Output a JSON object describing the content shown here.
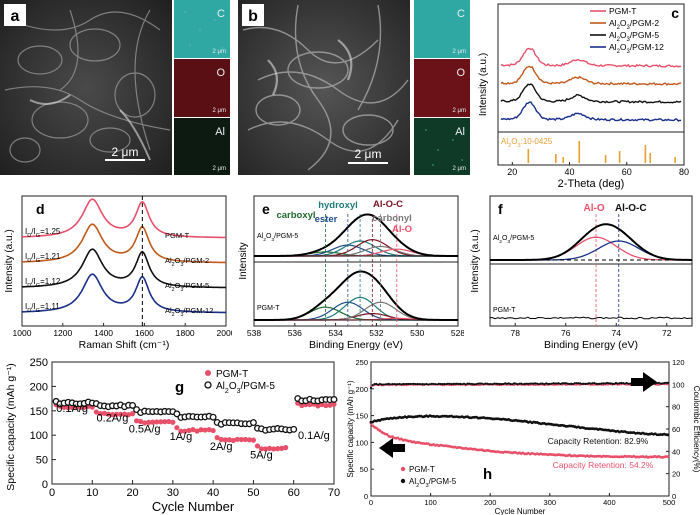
{
  "panel_a": {
    "letter": "a",
    "scale_bar": "2 μm",
    "maps": [
      {
        "element": "C",
        "scale": "2 μm",
        "color": "#2fa7a3"
      },
      {
        "element": "O",
        "scale": "2 μm",
        "color": "#5a0f14"
      },
      {
        "element": "Al",
        "scale": "2 μm",
        "color": "#0d1a12"
      }
    ]
  },
  "panel_b": {
    "letter": "b",
    "scale_bar": "2 μm",
    "maps": [
      {
        "element": "C",
        "scale": "2 μm",
        "color": "#2fa7a3"
      },
      {
        "element": "O",
        "scale": "2 μm",
        "color": "#6a1218"
      },
      {
        "element": "Al",
        "scale": "2 μm",
        "color": "#0f3a28"
      }
    ]
  },
  "chart_data": [
    {
      "id": "c",
      "type": "line",
      "title": "",
      "xlabel": "2-Theta (deg)",
      "ylabel": "Intensity (a.u.)",
      "xlim": [
        15,
        80
      ],
      "xticks": [
        20,
        40,
        60,
        80
      ],
      "legend": "top-right",
      "series": [
        {
          "name": "PGM-T",
          "color": "#e8506a",
          "offset": 3
        },
        {
          "name": "Al2O3/PGM-2",
          "color": "#c05a1a",
          "offset": 2
        },
        {
          "name": "Al2O3/PGM-5",
          "color": "#111111",
          "offset": 1
        },
        {
          "name": "Al2O3/PGM-12",
          "color": "#1a2f8a",
          "offset": 0
        }
      ],
      "peaks_2theta": [
        26,
        43
      ],
      "reference": {
        "label": "Al2O3:10-0425",
        "color": "#e8a030",
        "lines": [
          25.6,
          35.2,
          37.8,
          43.4,
          52.6,
          57.5,
          66.5,
          68.2,
          76.9
        ]
      }
    },
    {
      "id": "d",
      "type": "line",
      "xlabel": "Raman Shift (cm⁻¹)",
      "ylabel": "Intensity (a.u.)",
      "xlim": [
        1000,
        2000
      ],
      "xticks": [
        1000,
        1200,
        1400,
        1600,
        1800,
        2000
      ],
      "bands_cm": [
        1345,
        1590
      ],
      "series": [
        {
          "name": "PGM-T",
          "ratio": "I_D/I_G=1.25",
          "color": "#e8506a"
        },
        {
          "name": "Al2O3/PGM-2",
          "ratio": "I_D/I_G=1.21",
          "color": "#c05a1a"
        },
        {
          "name": "Al2O3/PGM-5",
          "ratio": "I_D/I_G=1.12",
          "color": "#111111"
        },
        {
          "name": "Al2O3/PGM-12",
          "ratio": "I_D/I_G=1.11",
          "color": "#1a2f8a"
        }
      ]
    },
    {
      "id": "e",
      "type": "line",
      "xlabel": "Binding Energy (eV)",
      "ylabel": "Intensity",
      "xlim": [
        538,
        528
      ],
      "xticks": [
        538,
        536,
        534,
        532,
        530,
        528
      ],
      "components": [
        {
          "name": "carboxyl",
          "ev": 534.5,
          "color": "#1f6a2e"
        },
        {
          "name": "ester",
          "ev": 533.4,
          "color": "#1f4e8a"
        },
        {
          "name": "hydroxyl",
          "ev": 532.8,
          "color": "#1f7a7a"
        },
        {
          "name": "Al-O-C",
          "ev": 532.2,
          "color": "#7a1020"
        },
        {
          "name": "carbonyl",
          "ev": 531.8,
          "color": "#777777"
        },
        {
          "name": "Al-O",
          "ev": 531.0,
          "color": "#e8506a"
        }
      ],
      "samples": [
        "Al2O3/PGM-5",
        "PGM-T"
      ]
    },
    {
      "id": "f",
      "type": "line",
      "xlabel": "Binding Energy (eV)",
      "ylabel": "Intensity (a.u.)",
      "xlim": [
        79,
        71
      ],
      "xticks": [
        78,
        76,
        74,
        72
      ],
      "components": [
        {
          "name": "Al-O",
          "ev": 74.8,
          "color": "#e8506a"
        },
        {
          "name": "Al-O-C",
          "ev": 73.9,
          "color": "#1a2f8a"
        }
      ],
      "samples": [
        "Al2O3/PGM-5",
        "PGM-T"
      ]
    },
    {
      "id": "g",
      "type": "scatter",
      "xlabel": "Cycle Number",
      "ylabel": "Specific capacity (mAh g⁻¹)",
      "xlim": [
        0,
        70
      ],
      "ylim": [
        0,
        250
      ],
      "xticks": [
        0,
        10,
        20,
        30,
        40,
        50,
        60,
        70
      ],
      "yticks": [
        0,
        50,
        100,
        150,
        200,
        250
      ],
      "rate_labels": [
        {
          "text": "0.1A/g",
          "x": 5,
          "y": 148
        },
        {
          "text": "0.2A/g",
          "x": 15,
          "y": 128
        },
        {
          "text": "0.5A/g",
          "x": 23,
          "y": 106
        },
        {
          "text": "1A/g",
          "x": 32,
          "y": 90
        },
        {
          "text": "2A/g",
          "x": 42,
          "y": 70
        },
        {
          "text": "5A/g",
          "x": 52,
          "y": 52
        },
        {
          "text": "0.1A/g",
          "x": 65,
          "y": 92
        }
      ],
      "series": [
        {
          "name": "PGM-T",
          "color": "#e8506a",
          "steps": [
            [
              1,
              10,
              158
            ],
            [
              11,
              20,
              143
            ],
            [
              21,
              30,
              127
            ],
            [
              31,
              40,
              110
            ],
            [
              41,
              50,
              90
            ],
            [
              51,
              58,
              73
            ],
            [
              61,
              70,
              162
            ]
          ]
        },
        {
          "name": "Al2O3/PGM-5",
          "color": "#111111",
          "steps": [
            [
              1,
              10,
              166
            ],
            [
              11,
              20,
              160
            ],
            [
              21,
              30,
              148
            ],
            [
              31,
              40,
              138
            ],
            [
              41,
              50,
              124
            ],
            [
              51,
              60,
              112
            ],
            [
              61,
              70,
              172
            ]
          ]
        }
      ]
    },
    {
      "id": "h",
      "type": "scatter",
      "xlabel": "Cycle Number",
      "ylabel": "Specific capacity (mAh g⁻¹)",
      "y2label": "Coulombic Efficiency(%)",
      "xlim": [
        0,
        500
      ],
      "ylim": [
        0,
        250
      ],
      "y2lim": [
        0,
        120
      ],
      "xticks": [
        0,
        100,
        200,
        300,
        400,
        500
      ],
      "yticks": [
        0,
        50,
        100,
        150,
        200,
        250
      ],
      "y2ticks": [
        0,
        20,
        40,
        60,
        80,
        100,
        120
      ],
      "annotations": [
        {
          "text": "Capacity Retention: 82.9%",
          "color": "#111111"
        },
        {
          "text": "Capacity Retention: 54.2%",
          "color": "#e8506a"
        }
      ],
      "series": [
        {
          "name": "PGM-T",
          "color": "#e8506a",
          "points": [
            [
              0,
              135
            ],
            [
              10,
              125
            ],
            [
              30,
              112
            ],
            [
              60,
              103
            ],
            [
              100,
              96
            ],
            [
              150,
              90
            ],
            [
              200,
              84
            ],
            [
              250,
              80
            ],
            [
              300,
              77
            ],
            [
              350,
              75
            ],
            [
              400,
              74
            ],
            [
              450,
              73
            ],
            [
              500,
              73
            ]
          ]
        },
        {
          "name": "Al2O3/PGM-5",
          "color": "#111111",
          "points": [
            [
              0,
              138
            ],
            [
              20,
              143
            ],
            [
              50,
              147
            ],
            [
              100,
              149
            ],
            [
              150,
              148
            ],
            [
              200,
              145
            ],
            [
              250,
              140
            ],
            [
              300,
              134
            ],
            [
              350,
              128
            ],
            [
              400,
              122
            ],
            [
              450,
              117
            ],
            [
              500,
              114
            ]
          ]
        },
        {
          "name": "Coulombic efficiency (PGM-T)",
          "color": "#e8506a",
          "points": [
            [
              0,
              98
            ],
            [
              5,
              99.5
            ],
            [
              500,
              100
            ]
          ]
        },
        {
          "name": "Coulombic efficiency (Al2O3/PGM-5)",
          "color": "#111111",
          "points": [
            [
              0,
              97
            ],
            [
              5,
              100
            ],
            [
              500,
              101
            ]
          ]
        }
      ]
    }
  ]
}
